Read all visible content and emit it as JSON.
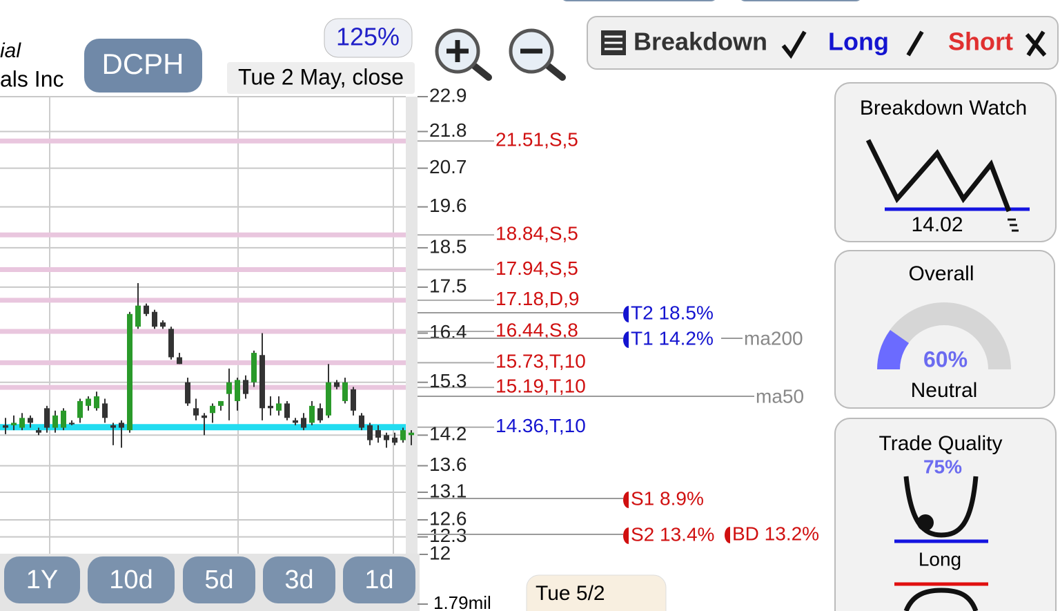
{
  "header": {
    "company_line1": "ial",
    "company_line2": "als Inc",
    "ticker": "DCPH",
    "zoom": "125%",
    "date_label": "Tue 2 May, close"
  },
  "toolbar": {
    "breakdown": "Breakdown",
    "long": "Long",
    "short": "Short"
  },
  "chart_data": {
    "type": "candlestick",
    "log_scale": true,
    "grid": true,
    "ylim": [
      12,
      22.9
    ],
    "yticks": [
      22.9,
      21.8,
      20.7,
      19.6,
      18.5,
      17.5,
      16.4,
      15.3,
      14.2,
      13.6,
      13.1,
      12.6,
      12.3,
      12
    ],
    "up_color": "#2a9a2a",
    "down_color": "#333333",
    "open": [
      14.4,
      14.4,
      14.35,
      14.55,
      14.3,
      14.75,
      14.35,
      14.35,
      14.45,
      14.55,
      14.8,
      14.75,
      14.85,
      14.4,
      14.45,
      14.3,
      16.55,
      17.05,
      16.9,
      16.65,
      16.5,
      15.85,
      15.3,
      14.75,
      14.6,
      14.65,
      14.8,
      15.05,
      14.9,
      15.35,
      15.3,
      15.9,
      14.8,
      14.7,
      14.85,
      14.5,
      14.55,
      14.45,
      14.75,
      14.6,
      15.3,
      14.9,
      15.15,
      14.6,
      14.4,
      14.3,
      14.2,
      14.15,
      14.1,
      14.2
    ],
    "high": [
      14.55,
      14.6,
      14.65,
      14.6,
      14.35,
      14.8,
      14.7,
      14.75,
      14.5,
      14.95,
      15.0,
      15.1,
      14.95,
      14.45,
      14.5,
      16.9,
      17.6,
      17.1,
      16.95,
      16.7,
      16.55,
      15.95,
      15.4,
      14.95,
      14.65,
      14.85,
      14.9,
      15.6,
      15.4,
      15.45,
      16.0,
      16.4,
      15.0,
      15.0,
      14.9,
      14.55,
      14.65,
      14.9,
      14.85,
      15.7,
      15.35,
      15.4,
      15.2,
      14.65,
      14.45,
      14.4,
      14.25,
      14.25,
      14.35,
      14.3
    ],
    "low": [
      14.22,
      14.3,
      14.3,
      14.35,
      14.2,
      14.25,
      14.25,
      14.3,
      14.4,
      14.45,
      14.7,
      14.7,
      14.45,
      14.0,
      13.95,
      14.25,
      16.5,
      16.8,
      16.5,
      16.5,
      15.8,
      15.7,
      14.8,
      14.5,
      14.2,
      14.45,
      14.7,
      14.5,
      14.7,
      14.95,
      15.2,
      14.5,
      14.6,
      14.6,
      14.5,
      14.4,
      14.3,
      14.4,
      14.45,
      14.55,
      15.15,
      14.85,
      14.6,
      14.3,
      14.0,
      14.05,
      13.95,
      14.0,
      14.05,
      14.0
    ],
    "close": [
      14.35,
      14.45,
      14.55,
      14.45,
      14.25,
      14.35,
      14.6,
      14.7,
      14.42,
      14.9,
      14.95,
      15.0,
      14.55,
      14.35,
      14.35,
      16.85,
      17.05,
      16.85,
      16.55,
      16.55,
      15.85,
      15.7,
      14.85,
      14.6,
      14.55,
      14.8,
      14.9,
      15.3,
      15.35,
      15.05,
      15.95,
      14.75,
      14.75,
      14.85,
      14.55,
      14.45,
      14.35,
      14.8,
      14.5,
      15.3,
      15.2,
      15.3,
      14.7,
      14.35,
      14.1,
      14.15,
      14.1,
      14.05,
      14.3,
      14.25
    ],
    "levels": [
      {
        "label": "21.51,S,5",
        "value": 21.51,
        "color": "#d01010"
      },
      {
        "label": "18.84,S,5",
        "value": 18.84,
        "color": "#d01010"
      },
      {
        "label": "17.94,S,5",
        "value": 17.94,
        "color": "#d01010"
      },
      {
        "label": "17.18,D,9",
        "value": 17.18,
        "color": "#d01010"
      },
      {
        "label": "16.44,S,8",
        "value": 16.44,
        "color": "#d01010"
      },
      {
        "label": "15.73,T,10",
        "value": 15.73,
        "color": "#d01010"
      },
      {
        "label": "15.19,T,10",
        "value": 15.19,
        "color": "#d01010"
      },
      {
        "label": "14.36,T,10",
        "value": 14.36,
        "color": "#1414d0"
      }
    ],
    "volume_label": "1.79mil"
  },
  "markers": [
    {
      "text": "T2 18.5%",
      "color": "#1414d0"
    },
    {
      "text": "T1 14.2%",
      "color": "#1414d0"
    },
    {
      "text": "ma200",
      "color": "#888888"
    },
    {
      "text": "ma50",
      "color": "#888888"
    },
    {
      "text": "S1 8.9%",
      "color": "#d01010"
    },
    {
      "text": "S2 13.4%",
      "color": "#d01010"
    },
    {
      "text": "BD 13.2%",
      "color": "#d01010"
    }
  ],
  "ranges": [
    "1Y",
    "10d",
    "5d",
    "3d",
    "1d"
  ],
  "footer_date": "Tue 5/2",
  "panels": {
    "breakdown_watch": {
      "title": "Breakdown Watch",
      "value": "14.02"
    },
    "overall": {
      "title": "Overall",
      "value": "60%",
      "label": "Neutral"
    },
    "trade_quality": {
      "title": "Trade Quality",
      "value": "75%",
      "label": "Long"
    }
  }
}
